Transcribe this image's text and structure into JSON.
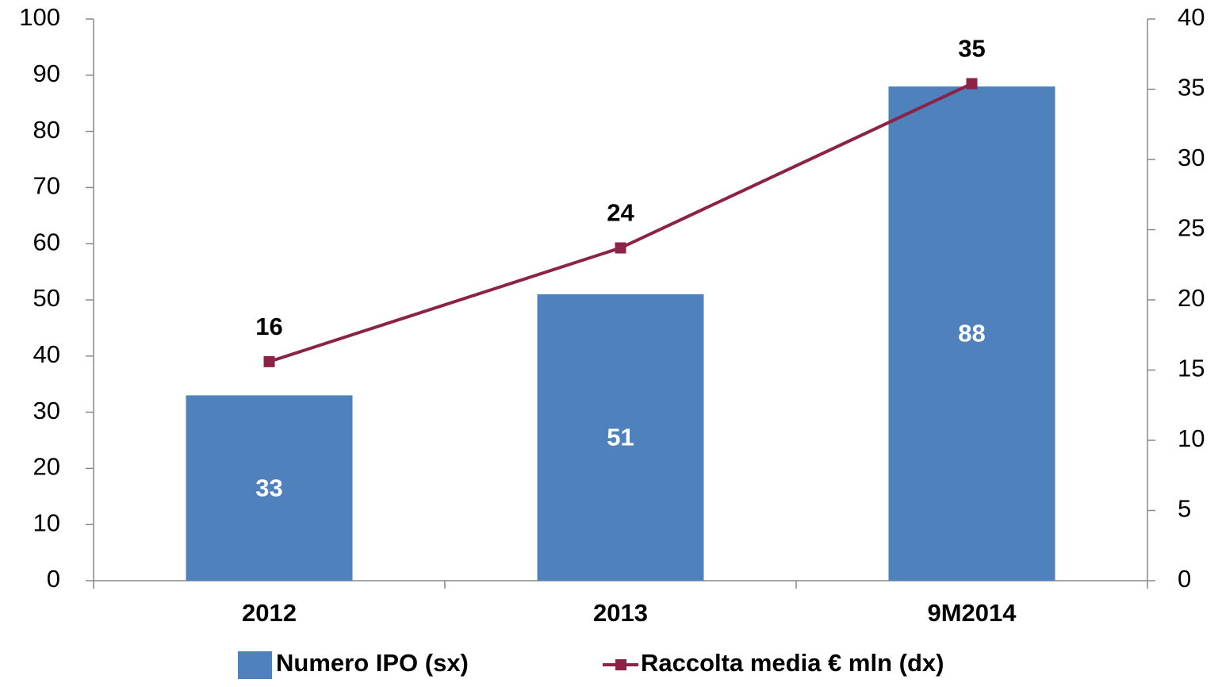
{
  "chart_data": {
    "type": "bar",
    "categories": [
      "2012",
      "2013",
      "9M2014"
    ],
    "series": [
      {
        "name": "Numero IPO (sx)",
        "type": "bar",
        "color": "#4f81bd",
        "values": [
          33,
          51,
          88
        ]
      },
      {
        "name": "Raccolta media € mln (dx)",
        "type": "line",
        "axis": "y2",
        "color": "#8b2346",
        "values": [
          15.6,
          23.7,
          35.4
        ],
        "value_labels": [
          "16",
          "24",
          "35"
        ]
      }
    ],
    "ylim": [
      0,
      100
    ],
    "yticks": [
      0,
      10,
      20,
      30,
      40,
      50,
      60,
      70,
      80,
      90,
      100
    ],
    "y2lim": [
      0,
      40
    ],
    "y2ticks": [
      0,
      5,
      10,
      15,
      20,
      25,
      30,
      35,
      40
    ],
    "legend": "bottom"
  }
}
